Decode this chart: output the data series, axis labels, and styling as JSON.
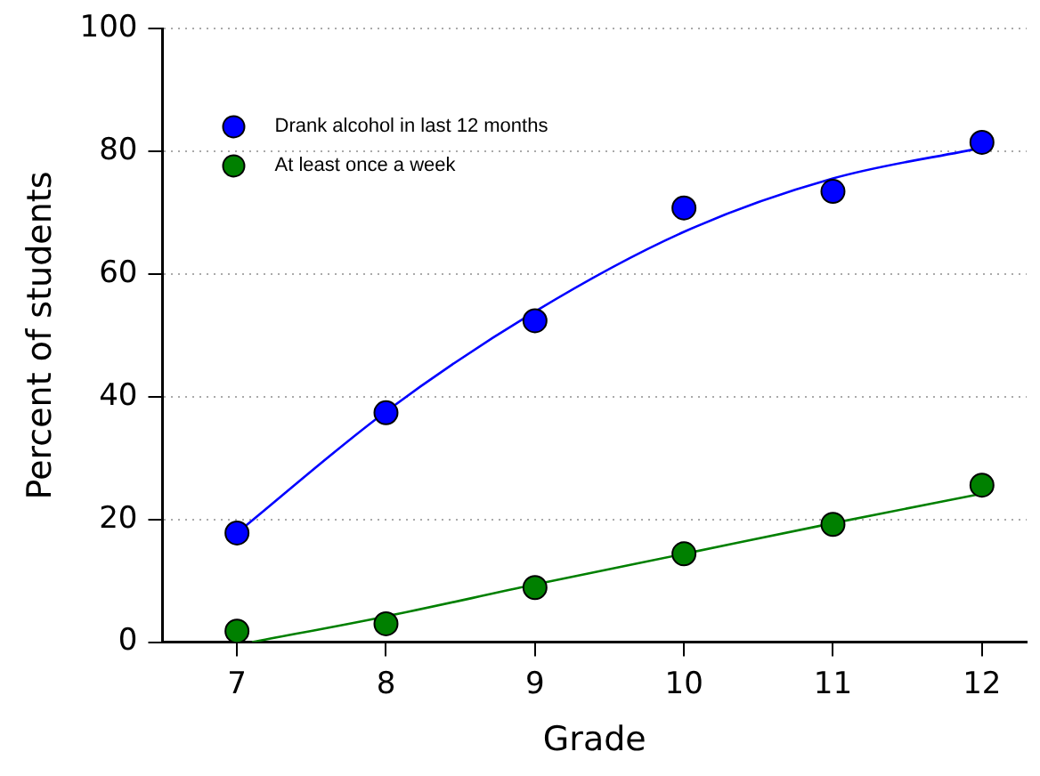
{
  "chart_data": {
    "type": "scatter",
    "xlabel": "Grade",
    "ylabel": "Percent of students",
    "xlim": [
      6.5,
      12.3
    ],
    "xticks": [
      7,
      8,
      9,
      10,
      11,
      12
    ],
    "ylim": [
      0,
      100
    ],
    "yticks": [
      0,
      20,
      40,
      60,
      80,
      100
    ],
    "grid": "y",
    "legend": "top left",
    "marker": "circle",
    "series": [
      {
        "name": "Drank alcohol in last 12 months",
        "color": "#0000ff",
        "x": [
          7,
          8,
          9,
          10,
          11,
          12
        ],
        "values": [
          17.8,
          37.4,
          52.4,
          70.8,
          73.5,
          81.5
        ]
      },
      {
        "name": "At least once a week",
        "color": "#008000",
        "x": [
          7,
          8,
          9,
          10,
          11,
          12
        ],
        "values": [
          1.8,
          3.0,
          8.9,
          14.4,
          19.2,
          25.6
        ]
      },
      {
        "type": "line",
        "marker": "none",
        "color": "#0000ff",
        "x": [
          7,
          8,
          9,
          10,
          11,
          12
        ],
        "values": [
          17.8,
          37.6,
          53.9,
          66.9,
          75.6,
          80.6
        ]
      },
      {
        "type": "line",
        "marker": "none",
        "color": "#008000",
        "x": [
          7.1,
          8,
          9,
          10,
          11,
          12
        ],
        "values": [
          0,
          4.2,
          9.4,
          14.4,
          19.4,
          24.2
        ]
      }
    ]
  }
}
